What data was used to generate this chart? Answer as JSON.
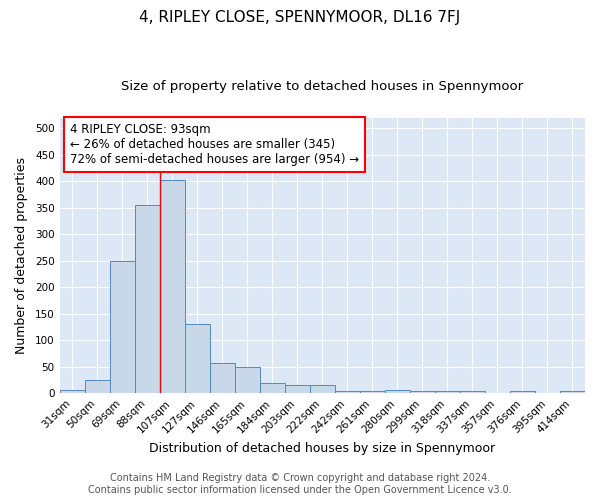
{
  "title": "4, RIPLEY CLOSE, SPENNYMOOR, DL16 7FJ",
  "subtitle": "Size of property relative to detached houses in Spennymoor",
  "xlabel": "Distribution of detached houses by size in Spennymoor",
  "ylabel": "Number of detached properties",
  "categories": [
    "31sqm",
    "50sqm",
    "69sqm",
    "88sqm",
    "107sqm",
    "127sqm",
    "146sqm",
    "165sqm",
    "184sqm",
    "203sqm",
    "222sqm",
    "242sqm",
    "261sqm",
    "280sqm",
    "299sqm",
    "318sqm",
    "337sqm",
    "357sqm",
    "376sqm",
    "395sqm",
    "414sqm"
  ],
  "values": [
    7,
    26,
    250,
    355,
    403,
    130,
    58,
    50,
    20,
    16,
    16,
    5,
    5,
    7,
    5,
    5,
    5,
    1,
    5,
    1,
    4
  ],
  "bar_color": "#c8d8e8",
  "bar_edge_color": "#5588bb",
  "red_line_x": 3.5,
  "annotation_text": "4 RIPLEY CLOSE: 93sqm\n← 26% of detached houses are smaller (345)\n72% of semi-detached houses are larger (954) →",
  "annotation_box_color": "white",
  "annotation_box_edge_color": "red",
  "red_line_color": "red",
  "footer_line1": "Contains HM Land Registry data © Crown copyright and database right 2024.",
  "footer_line2": "Contains public sector information licensed under the Open Government Licence v3.0.",
  "ylim": [
    0,
    520
  ],
  "fig_background_color": "#ffffff",
  "plot_background_color": "#dce8f5",
  "title_fontsize": 11,
  "subtitle_fontsize": 9.5,
  "axis_label_fontsize": 9,
  "tick_fontsize": 7.5,
  "footer_fontsize": 7,
  "annotation_fontsize": 8.5
}
